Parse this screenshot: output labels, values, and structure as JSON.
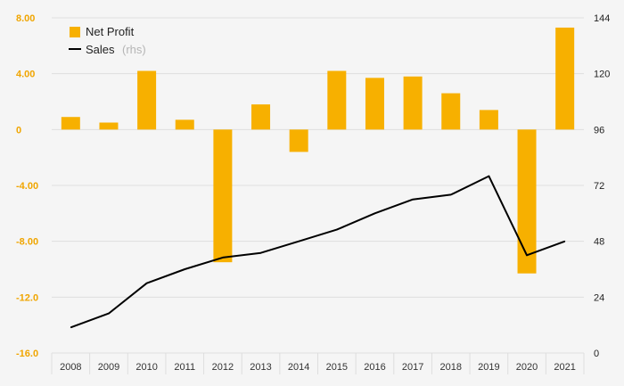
{
  "chart_data": {
    "type": "bar+line",
    "categories": [
      "2008",
      "2009",
      "2010",
      "2011",
      "2012",
      "2013",
      "2014",
      "2015",
      "2016",
      "2017",
      "2018",
      "2019",
      "2020",
      "2021"
    ],
    "series": [
      {
        "name": "Net Profit",
        "type": "bar",
        "axis": "left",
        "color": "#f7b000",
        "values": [
          0.9,
          0.5,
          4.2,
          0.7,
          -9.5,
          1.8,
          -1.6,
          4.2,
          3.7,
          3.8,
          2.6,
          1.4,
          -10.3,
          7.3
        ]
      },
      {
        "name": "Sales",
        "name_suffix": "(rhs)",
        "type": "line",
        "axis": "right",
        "color": "#000000",
        "values": [
          11,
          17,
          30,
          36,
          41,
          43,
          48,
          53,
          60,
          66,
          68,
          76,
          42,
          48
        ]
      }
    ],
    "y_left": {
      "min": -16,
      "max": 8,
      "ticks": [
        8,
        4,
        0,
        -4,
        -8,
        -12,
        -16
      ],
      "tick_labels": [
        "8.00",
        "4.00",
        "0",
        "-4.00",
        "-8.00",
        "-12.0",
        "-16.0"
      ]
    },
    "y_right": {
      "min": 0,
      "max": 144,
      "ticks": [
        144,
        120,
        96,
        72,
        48,
        24,
        0
      ],
      "tick_labels": [
        "144",
        "120",
        "96",
        "72",
        "48",
        "24",
        "0"
      ]
    },
    "grid": true,
    "legend": "top-left"
  }
}
